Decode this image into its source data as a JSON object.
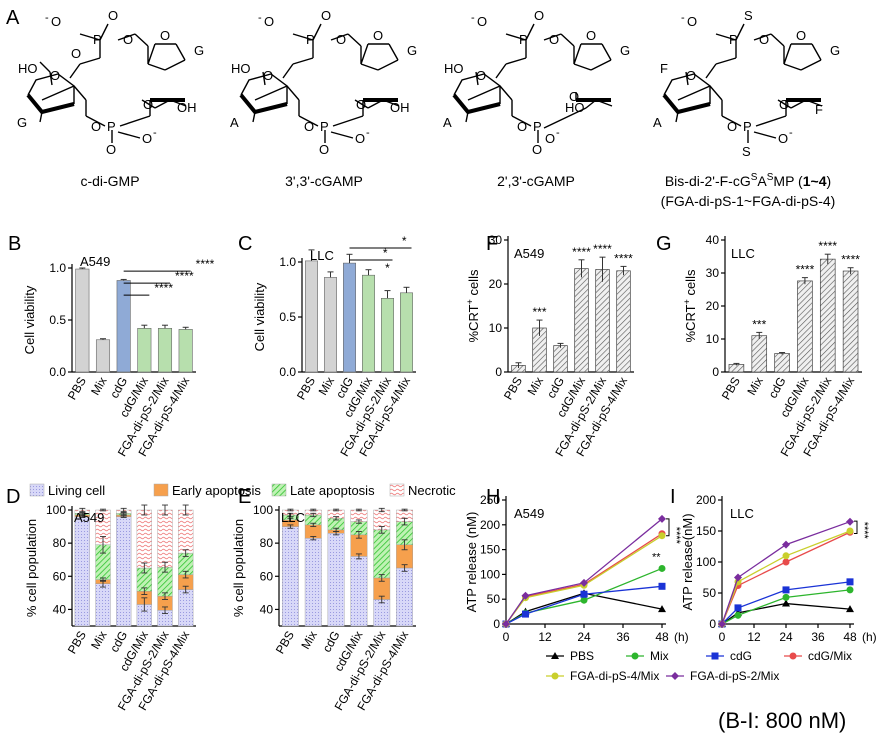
{
  "panel_labels": [
    "A",
    "B",
    "C",
    "D",
    "E",
    "F",
    "G",
    "H",
    "I"
  ],
  "structures": {
    "captions": [
      "c-di-GMP",
      "3',3'-cGAMP",
      "2',3'-cGAMP"
    ],
    "caption4_line1": "Bis-di-2'-F-cG",
    "caption4_sup1": "S",
    "caption4_mid": "A",
    "caption4_sup2": "S",
    "caption4_end": "MP (",
    "caption4_bold": "1~4",
    "caption4_close": ")",
    "caption4_line2": "(FGA-di-pS-1~FGA-di-pS-4)",
    "atoms": {
      "O": "O",
      "Ominus": "O",
      "minus": "-",
      "P": "P",
      "S": "S",
      "HO": "HO",
      "OH": "OH",
      "F": "F",
      "G": "G",
      "A": "A"
    }
  },
  "footnote": "(B-I: 800 nM)",
  "chart_data": [
    {
      "id": "B",
      "type": "bar",
      "title": "A549",
      "ylabel": "Cell viability",
      "ylim": [
        0,
        1.0
      ],
      "yticks": [
        "0.0",
        "0.5",
        "1.0"
      ],
      "ytick_values": [
        0,
        0.5,
        1.0
      ],
      "categories": [
        "PBS",
        "Mix",
        "cdG",
        "cdG/Mix",
        "FGA-di-pS-2/Mix",
        "FGA-di-pS-4/Mix"
      ],
      "values": [
        0.99,
        0.31,
        0.88,
        0.42,
        0.42,
        0.41
      ],
      "errors": [
        0.01,
        0.01,
        0.01,
        0.03,
        0.03,
        0.02
      ],
      "colors": [
        "#d3d3d3",
        "#d3d3d3",
        "#8faad6",
        "#b7dfad",
        "#b7dfad",
        "#b7dfad"
      ],
      "significance": [
        {
          "from": 2,
          "to": 3,
          "label": "****"
        },
        {
          "from": 2,
          "to": 4,
          "label": "****"
        },
        {
          "from": 2,
          "to": 5,
          "label": "****"
        }
      ]
    },
    {
      "id": "C",
      "type": "bar",
      "title": "LLC",
      "ylabel": "Cell viability",
      "ylim": [
        0,
        1.0
      ],
      "yticks": [
        "0.0",
        "0.5",
        "1.0"
      ],
      "ytick_values": [
        0,
        0.5,
        1.0
      ],
      "categories": [
        "PBS",
        "Mix",
        "cdG",
        "cdG/Mix",
        "FGA-di-pS-2/Mix",
        "FGA-di-pS-4/Mix"
      ],
      "values": [
        1.01,
        0.86,
        0.99,
        0.88,
        0.67,
        0.72
      ],
      "errors": [
        0.1,
        0.05,
        0.08,
        0.05,
        0.07,
        0.05
      ],
      "colors": [
        "#d3d3d3",
        "#d3d3d3",
        "#8faad6",
        "#b7dfad",
        "#b7dfad",
        "#b7dfad"
      ],
      "significance": [
        {
          "from": 2,
          "to": 5,
          "label": "*"
        },
        {
          "from": 2,
          "to": 4,
          "label": "*"
        },
        {
          "at": 4,
          "label": "*"
        }
      ]
    },
    {
      "id": "F",
      "type": "bar",
      "title": "A549",
      "ylabel": "%CRT+ cells",
      "ylabel_main": "%CRT",
      "ylabel_sup": "+",
      "ylabel_tail": " cells",
      "ylim": [
        0,
        30
      ],
      "yticks": [
        "0",
        "10",
        "20",
        "30"
      ],
      "ytick_values": [
        0,
        10,
        20,
        30
      ],
      "categories": [
        "PBS",
        "Mix",
        "cdG",
        "cdG/Mix",
        "FGA-di-pS-2/Mix",
        "FGA-di-pS-4/Mix"
      ],
      "values": [
        1.5,
        10,
        6,
        23.5,
        23.3,
        23
      ],
      "errors": [
        0.6,
        1.8,
        0.5,
        2,
        2.8,
        1
      ],
      "hatched": true,
      "stars": [
        "",
        "***",
        "",
        "****",
        "****",
        "****"
      ]
    },
    {
      "id": "G",
      "type": "bar",
      "title": "LLC",
      "ylabel": "%CRT+ cells",
      "ylabel_main": "%CRT",
      "ylabel_sup": "+",
      "ylabel_tail": " cells",
      "ylim": [
        0,
        40
      ],
      "yticks": [
        "0",
        "10",
        "20",
        "30",
        "40"
      ],
      "ytick_values": [
        0,
        10,
        20,
        30,
        40
      ],
      "categories": [
        "PBS",
        "Mix",
        "cdG",
        "cdG/Mix",
        "FGA-di-pS-2/Mix",
        "FGA-di-pS-4/Mix"
      ],
      "values": [
        2.3,
        11,
        5.6,
        27.6,
        34.2,
        30.6
      ],
      "errors": [
        0.3,
        1,
        0.3,
        1,
        1.5,
        1
      ],
      "hatched": true,
      "stars": [
        "",
        "***",
        "",
        "****",
        "****",
        "****"
      ]
    },
    {
      "id": "D",
      "type": "stacked-bar",
      "title": "A549",
      "ylabel": "% cell population",
      "ylim": [
        30,
        100
      ],
      "yticks": [
        "40",
        "60",
        "80",
        "100"
      ],
      "ytick_values": [
        40,
        60,
        80,
        100
      ],
      "categories": [
        "PBS",
        "Mix",
        "cdG",
        "cdG/Mix",
        "FGA-di-pS-2/Mix",
        "FGA-di-pS-4/Mix"
      ],
      "series": [
        {
          "name": "Living cell",
          "cumulative": [
            96,
            55.5,
            96,
            43,
            39.5,
            52
          ],
          "errors": [
            0.5,
            2,
            0.5,
            4,
            2,
            2
          ]
        },
        {
          "name": "Early apoptosis",
          "cumulative": [
            97,
            58,
            97,
            51,
            48,
            61
          ],
          "errors": [
            0.5,
            1,
            0.5,
            2,
            2,
            2
          ]
        },
        {
          "name": "Late apoptosis",
          "cumulative": [
            98,
            79,
            98,
            65,
            65.5,
            74
          ],
          "errors": [
            0.5,
            5,
            0.5,
            3,
            3,
            2
          ]
        },
        {
          "name": "Necrotic",
          "cumulative": [
            100,
            100,
            100,
            100,
            100,
            100
          ],
          "errors": [
            1,
            0.5,
            1,
            3,
            3,
            3
          ]
        }
      ]
    },
    {
      "id": "E",
      "type": "stacked-bar",
      "title": "LLC",
      "ylabel": "% cell population",
      "ylim": [
        30,
        100
      ],
      "yticks": [
        "40",
        "60",
        "80",
        "100"
      ],
      "ytick_values": [
        40,
        60,
        80,
        100
      ],
      "categories": [
        "PBS",
        "Mix",
        "cdG",
        "cdG/Mix",
        "FGA-di-pS-2/Mix",
        "FGA-di-pS-4/Mix"
      ],
      "series": [
        {
          "name": "Living cell",
          "cumulative": [
            90,
            83,
            86,
            72,
            46,
            65
          ],
          "errors": [
            1,
            1,
            1,
            1.5,
            2,
            2
          ]
        },
        {
          "name": "Early apoptosis",
          "cumulative": [
            94,
            91,
            88,
            85,
            59,
            79
          ],
          "errors": [
            1,
            1,
            1,
            2,
            2,
            3
          ]
        },
        {
          "name": "Late apoptosis",
          "cumulative": [
            97,
            97,
            95,
            93,
            88,
            93
          ],
          "errors": [
            1,
            1,
            1,
            1,
            2,
            2
          ]
        },
        {
          "name": "Necrotic",
          "cumulative": [
            100,
            100,
            100,
            100,
            100,
            100
          ],
          "errors": [
            0.5,
            0.5,
            0.5,
            0.5,
            1,
            0.5
          ]
        }
      ]
    },
    {
      "id": "H",
      "type": "line",
      "title": "A549",
      "ylabel": "ATP release (nM)",
      "xlabel": "(h)",
      "x": [
        0,
        6,
        24,
        48
      ],
      "xlim": [
        0,
        48
      ],
      "xticks": [
        "0",
        "12",
        "24",
        "36",
        "48"
      ],
      "xtick_values": [
        0,
        12,
        24,
        36,
        48
      ],
      "ylim": [
        0,
        250
      ],
      "yticks": [
        "0",
        "50",
        "100",
        "150",
        "200",
        "250"
      ],
      "ytick_values": [
        0,
        50,
        100,
        150,
        200,
        250
      ],
      "series": [
        {
          "name": "PBS",
          "values": [
            0,
            25,
            62,
            30
          ]
        },
        {
          "name": "Mix",
          "values": [
            0,
            22,
            48,
            112
          ]
        },
        {
          "name": "cdG",
          "values": [
            0,
            20,
            60,
            76
          ]
        },
        {
          "name": "cdG/Mix",
          "values": [
            0,
            55,
            80,
            182
          ]
        },
        {
          "name": "FGA-di-pS-4/Mix",
          "values": [
            0,
            53,
            78,
            178
          ]
        },
        {
          "name": "FGA-di-pS-2/Mix",
          "values": [
            0,
            57,
            83,
            212
          ]
        }
      ],
      "annotations": [
        "****",
        "**"
      ]
    },
    {
      "id": "I",
      "type": "line",
      "title": "LLC",
      "ylabel": "ATP release(nM)",
      "xlabel": "(h)",
      "x": [
        0,
        6,
        24,
        48
      ],
      "xlim": [
        0,
        48
      ],
      "xticks": [
        "0",
        "12",
        "24",
        "36",
        "48"
      ],
      "xtick_values": [
        0,
        12,
        24,
        36,
        48
      ],
      "ylim": [
        0,
        200
      ],
      "yticks": [
        "0",
        "50",
        "100",
        "150",
        "200"
      ],
      "ytick_values": [
        0,
        50,
        100,
        150,
        200
      ],
      "series": [
        {
          "name": "PBS",
          "values": [
            0,
            18,
            33,
            24
          ]
        },
        {
          "name": "Mix",
          "values": [
            0,
            14,
            43,
            55
          ]
        },
        {
          "name": "cdG",
          "values": [
            0,
            26,
            55,
            68
          ]
        },
        {
          "name": "cdG/Mix",
          "values": [
            0,
            62,
            100,
            148
          ]
        },
        {
          "name": "FGA-di-pS-4/Mix",
          "values": [
            0,
            68,
            110,
            150
          ]
        },
        {
          "name": "FGA-di-pS-2/Mix",
          "values": [
            0,
            75,
            128,
            165
          ]
        }
      ],
      "annotations": [
        "****"
      ]
    }
  ],
  "stack_legend": {
    "items": [
      "Living cell",
      "Early apoptosis",
      "Late apoptosis",
      "Necrotic"
    ],
    "colors": [
      "#c9c9f2",
      "#f6a04d",
      "#63d052",
      "#f0a8a8"
    ]
  },
  "line_legend": {
    "items": [
      "PBS",
      "Mix",
      "cdG",
      "cdG/Mix",
      "FGA-di-pS-4/Mix",
      "FGA-di-pS-2/Mix"
    ],
    "colors": [
      "#000000",
      "#2db52d",
      "#1a33d6",
      "#e84b4b",
      "#c9cf2c",
      "#7a2d9e"
    ],
    "markers": [
      "triangle",
      "circle",
      "square",
      "circle",
      "circle",
      "diamond"
    ]
  }
}
